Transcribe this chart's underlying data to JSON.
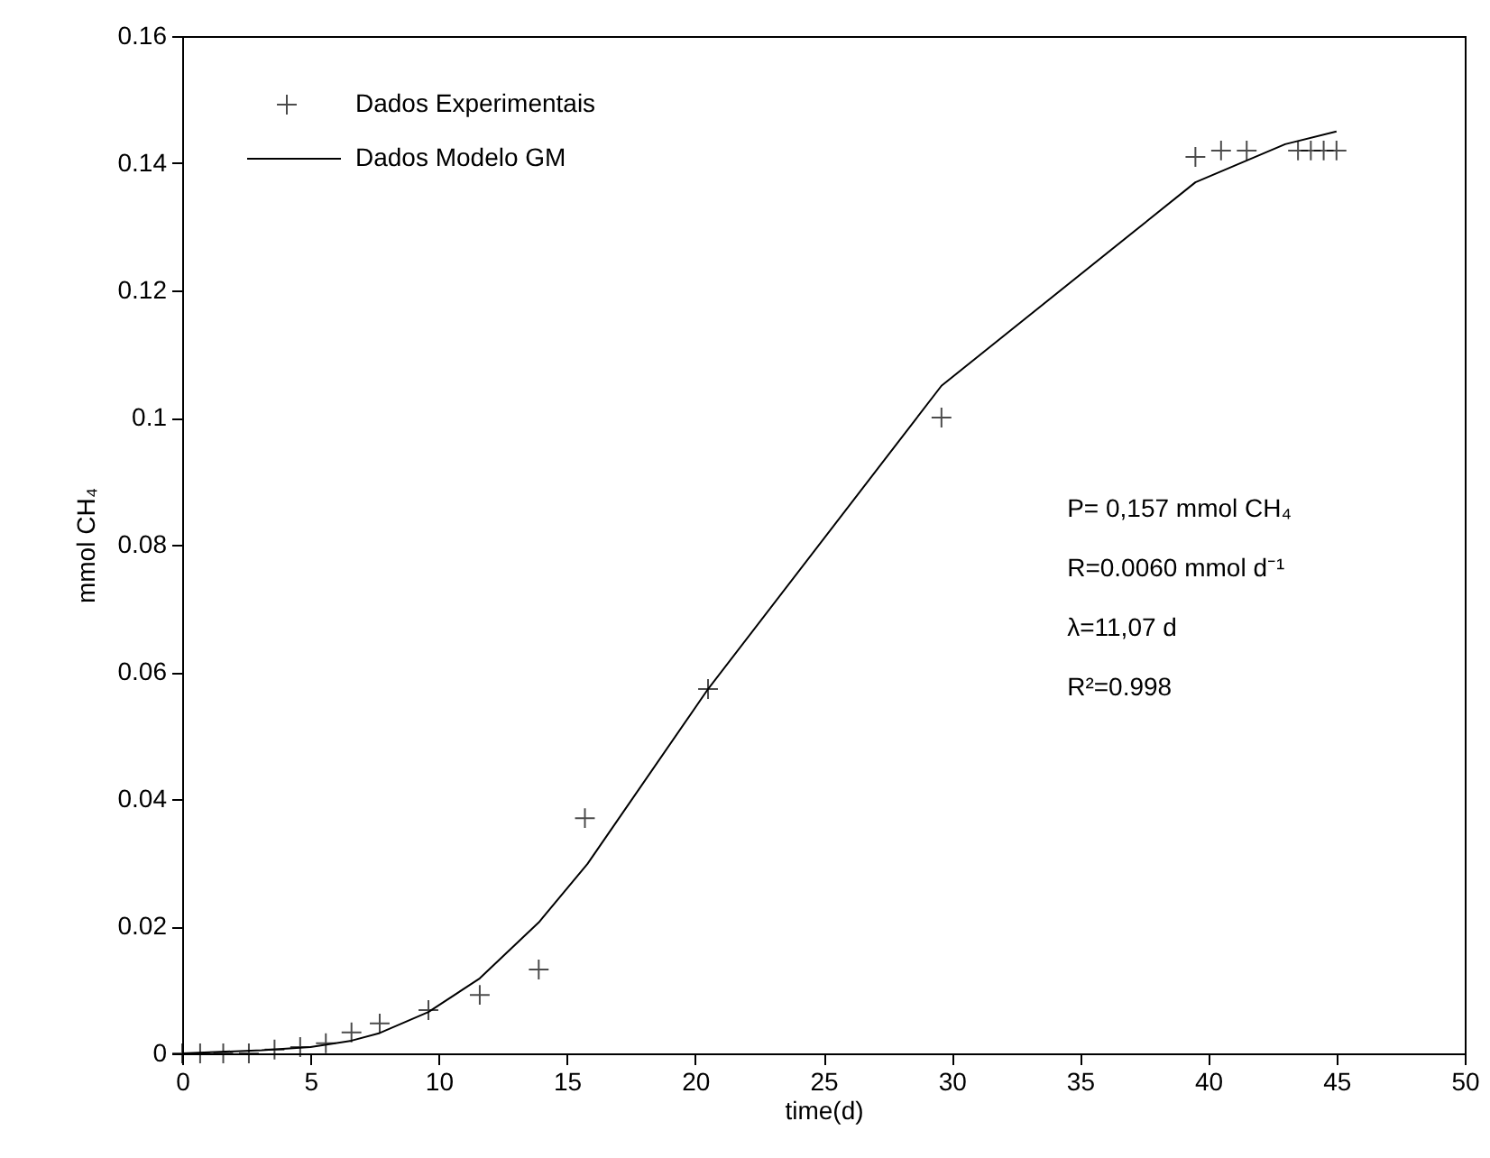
{
  "chart_data": {
    "type": "scatter",
    "xlabel": "time(d)",
    "ylabel": "mmol CH₄",
    "xlim": [
      0,
      50
    ],
    "xticks": [
      0,
      5,
      10,
      15,
      20,
      25,
      30,
      35,
      40,
      45,
      50
    ],
    "ylim": [
      0,
      0.16
    ],
    "yticks": [
      0,
      0.02,
      0.04,
      0.06,
      0.08,
      0.1,
      0.12,
      0.14,
      0.16
    ],
    "grid": false,
    "legend": "top left",
    "series": [
      {
        "name": "Dados Experimentais",
        "marker": "cross",
        "color": "#000000",
        "x": [
          0,
          0.7,
          1.6,
          2.6,
          3.6,
          4.6,
          5.6,
          6.6,
          7.7,
          9.6,
          11.6,
          13.9,
          15.7,
          20.5,
          29.6,
          39.5,
          40.5,
          41.5,
          43.5,
          44,
          44.5,
          45
        ],
        "values": [
          0,
          0,
          0,
          0,
          0.0006,
          0.001,
          0.0016,
          0.0033,
          0.0047,
          0.0068,
          0.0092,
          0.0132,
          0.037,
          0.0573,
          0.1,
          0.141,
          0.142,
          0.142,
          0.142,
          0.142,
          0.142,
          0.142
        ]
      },
      {
        "name": "Dados Modelo GM",
        "type": "line",
        "line_style": "solid",
        "color": "#000000",
        "x": [
          0,
          3.1,
          5,
          6.6,
          7.7,
          9.6,
          11.6,
          13.9,
          15.8,
          20.5,
          29.6,
          39.5,
          43,
          45
        ],
        "values": [
          0,
          0.0005,
          0.001,
          0.002,
          0.0032,
          0.0065,
          0.0118,
          0.0206,
          0.0298,
          0.0573,
          0.105,
          0.137,
          0.143,
          0.145
        ]
      }
    ],
    "annotations": [
      "P= 0,157 mmol CH₄",
      "R=0.0060 mmol d⁻¹",
      "λ=11,07 d",
      "R²=0.998"
    ]
  }
}
